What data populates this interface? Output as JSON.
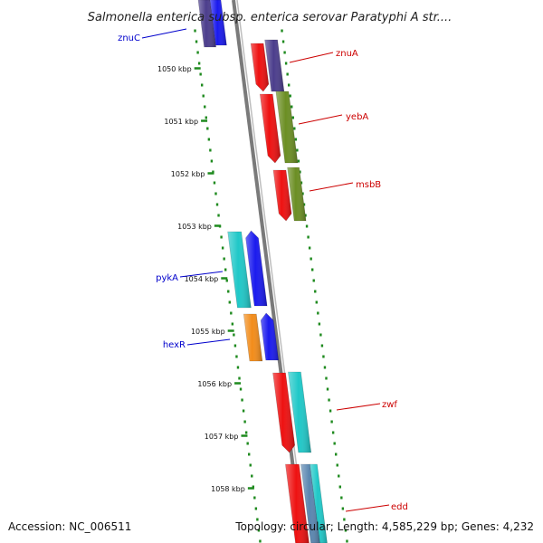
{
  "title": "Salmonella enterica subsp. enterica serovar Paratyphi A str....",
  "footer": {
    "accession": "Accession: NC_006511",
    "stats": "Topology: circular; Length: 4,585,229 bp; Genes: 4,232"
  },
  "ticks": [
    "1050 kbp",
    "1051 kbp",
    "1052 kbp",
    "1053 kbp",
    "1054 kbp",
    "1055 kbp",
    "1056 kbp",
    "1057 kbp",
    "1058 kbp"
  ],
  "colors": {
    "red": "#ee1111",
    "purple": "#4b3d8c",
    "olive": "#6b8e23",
    "cyan": "#20c8c8",
    "blue": "#1a1aee",
    "orange": "#f28c1a",
    "steelblue": "#5a86b0",
    "backbone": "#7a7a7a",
    "tickgreen": "#1e8a1e",
    "label_red": "#cc0000",
    "label_blue": "#0000cc"
  },
  "genes": [
    {
      "name": "znuC",
      "color": "blue",
      "side": "left"
    },
    {
      "name": "znuA",
      "color": "red",
      "side": "right"
    },
    {
      "name": "yebA",
      "color": "red",
      "side": "right"
    },
    {
      "name": "msbB",
      "color": "red",
      "side": "right"
    },
    {
      "name": "pykA",
      "color": "blue",
      "side": "left"
    },
    {
      "name": "hexR",
      "color": "blue",
      "side": "left"
    },
    {
      "name": "zwf",
      "color": "red",
      "side": "right"
    },
    {
      "name": "edd",
      "color": "red",
      "side": "right"
    }
  ]
}
